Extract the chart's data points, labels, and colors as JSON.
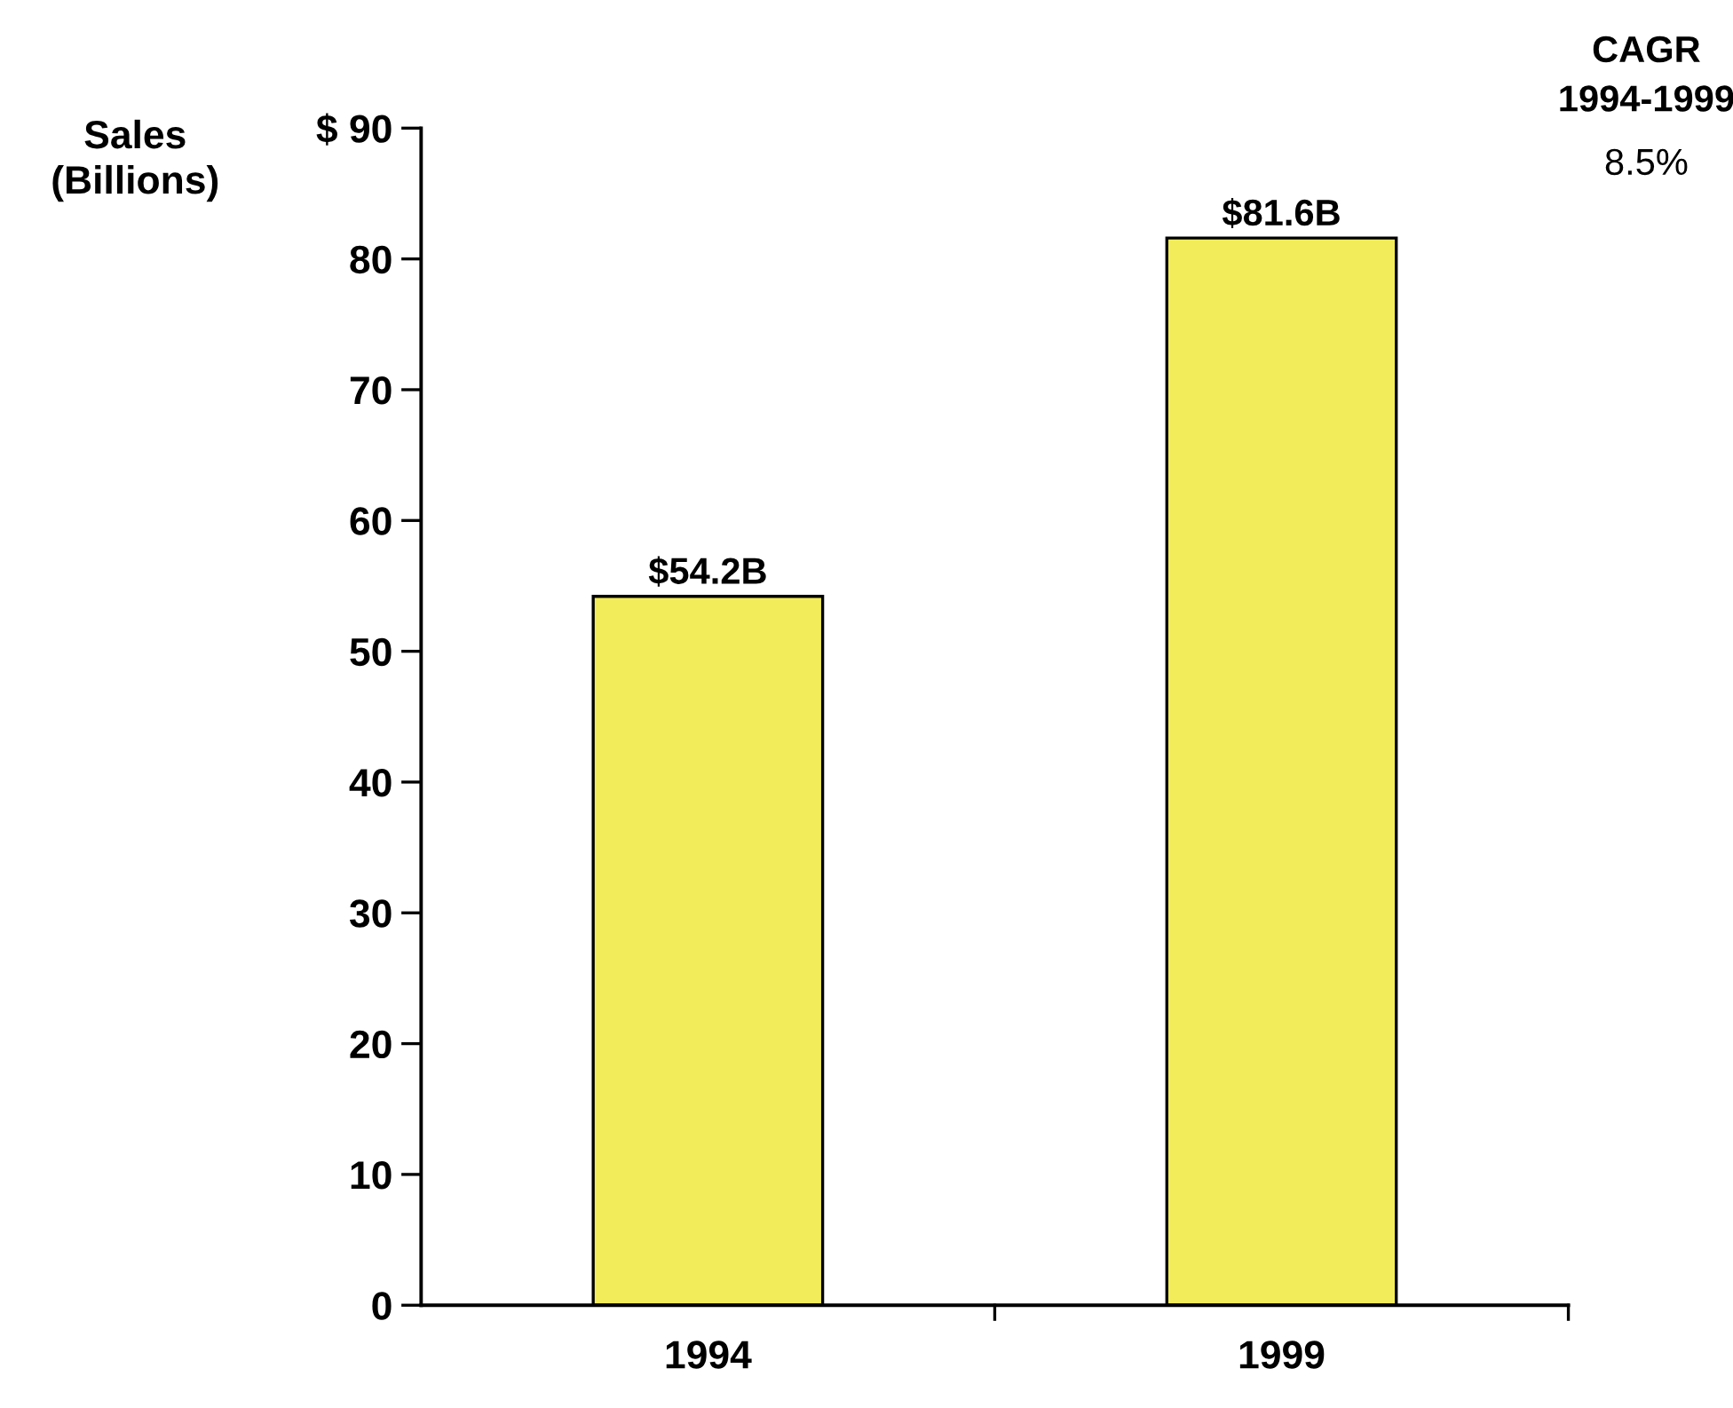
{
  "chart_data": {
    "type": "bar",
    "categories": [
      "1994",
      "1999"
    ],
    "values": [
      54.2,
      81.6
    ],
    "value_labels": [
      "$54.2B",
      "$81.6B"
    ],
    "color": "#f2ec5a",
    "ylabel": "Sales\n(Billions)",
    "ylim": [
      0,
      90
    ],
    "yticks": [
      0,
      10,
      20,
      30,
      40,
      50,
      60,
      70,
      80,
      {
        "value": 90,
        "label": "$ 90"
      }
    ],
    "annotations": [
      "CAGR",
      "1994-1999",
      "8.5%"
    ],
    "grid": false
  }
}
